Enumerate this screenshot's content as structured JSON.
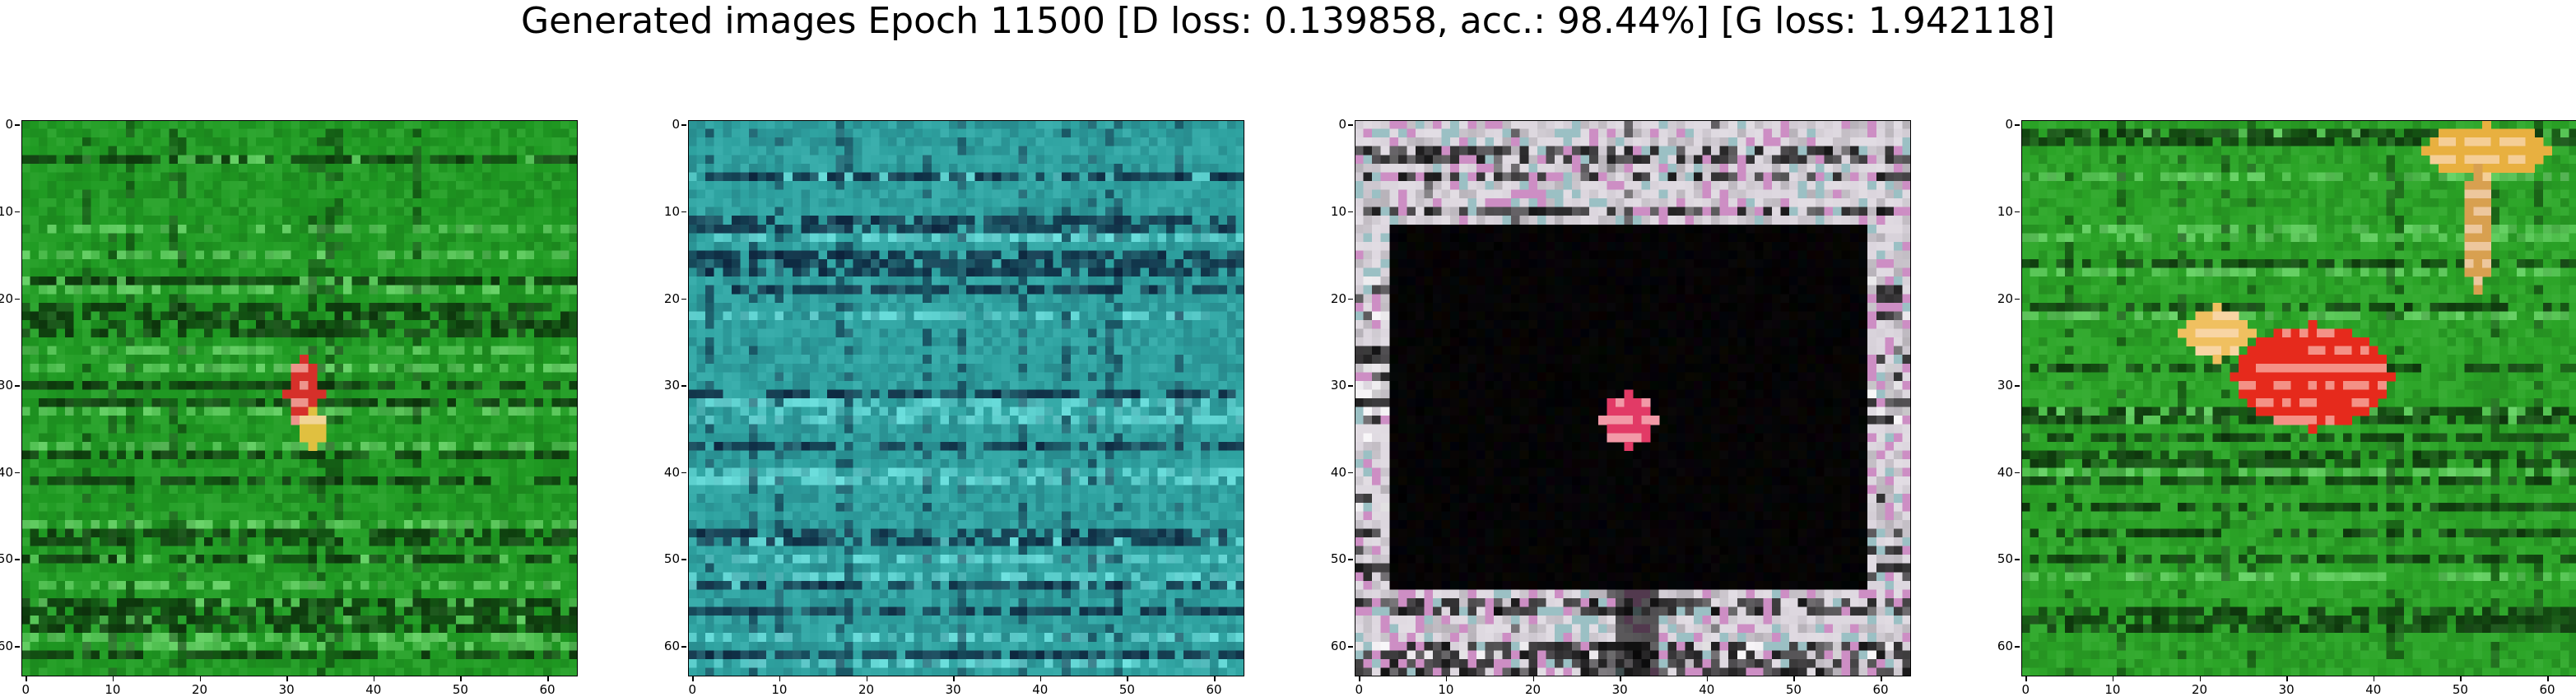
{
  "figure": {
    "title": "Generated images Epoch 11500 [D loss: 0.139858, acc.: 98.44%] [G loss: 1.942118]"
  },
  "axes": {
    "tick_labels": [
      "0",
      "10",
      "20",
      "30",
      "40",
      "50",
      "60"
    ],
    "tick_values": [
      0,
      10,
      20,
      30,
      40,
      50,
      60
    ],
    "extent": [
      -0.5,
      63.5
    ]
  },
  "panels": [
    {
      "description": "green textured noise with small orange-red blob near center",
      "palette": {
        "base": "#1f9a22",
        "dark": "#0b2a0a",
        "light": "#7be07a"
      },
      "blobs": [
        {
          "x": 32,
          "y": 31,
          "rx": 2,
          "ry": 4,
          "color": "#d6302a"
        },
        {
          "x": 33,
          "y": 35,
          "rx": 1.5,
          "ry": 2,
          "color": "#e0c040"
        }
      ]
    },
    {
      "description": "teal/cyan textured noise with horizontal stripes",
      "palette": {
        "base": "#2ea2a0",
        "dark": "#0a1a35",
        "light": "#7df0ee"
      },
      "blobs": []
    },
    {
      "description": "white/pink striped border around large black rectangle with small red-white blob",
      "palette": {
        "base": "#dcd6de",
        "dark": "#000000",
        "light": "#ffffff"
      },
      "blobs": [
        {
          "x": 31,
          "y": 34,
          "rx": 3,
          "ry": 3,
          "color": "#e23a66"
        }
      ]
    },
    {
      "description": "green textured noise with large red-orange blob and yellow streak top-right",
      "palette": {
        "base": "#2aa326",
        "dark": "#0b2a0a",
        "light": "#7be07a"
      },
      "blobs": [
        {
          "x": 33,
          "y": 29,
          "rx": 9,
          "ry": 6,
          "color": "#e62a1c"
        },
        {
          "x": 22,
          "y": 24,
          "rx": 4,
          "ry": 3,
          "color": "#f0c060"
        },
        {
          "x": 53,
          "y": 3,
          "rx": 7,
          "ry": 3,
          "color": "#e8b040"
        },
        {
          "x": 52,
          "y": 12,
          "rx": 1.5,
          "ry": 7,
          "color": "#d8a050"
        }
      ]
    }
  ]
}
